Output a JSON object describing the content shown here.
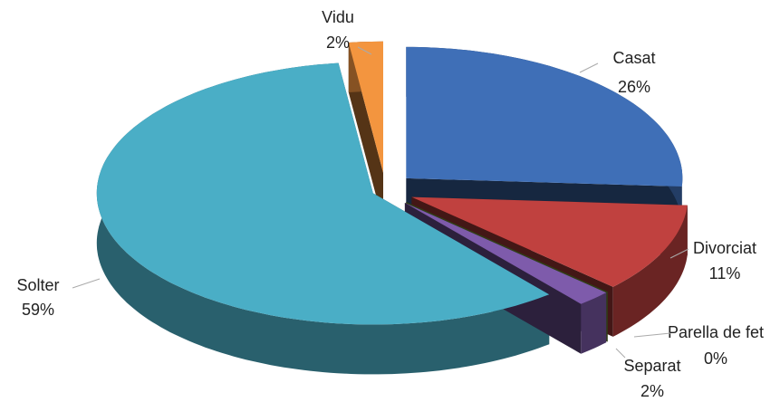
{
  "chart_data": {
    "type": "pie3d",
    "categories": [
      "Casat",
      "Divorciat",
      "Parella de fet",
      "Separat",
      "Solter",
      "Vidu"
    ],
    "values": [
      26,
      11,
      0,
      2,
      59,
      2
    ],
    "value_labels": [
      "26%",
      "11%",
      "0%",
      "2%",
      "59%",
      "2%"
    ],
    "colors": [
      "#3f6fb7",
      "#c0413f",
      "#8db33c",
      "#7e5bab",
      "#4aaec6",
      "#f3953f"
    ]
  }
}
